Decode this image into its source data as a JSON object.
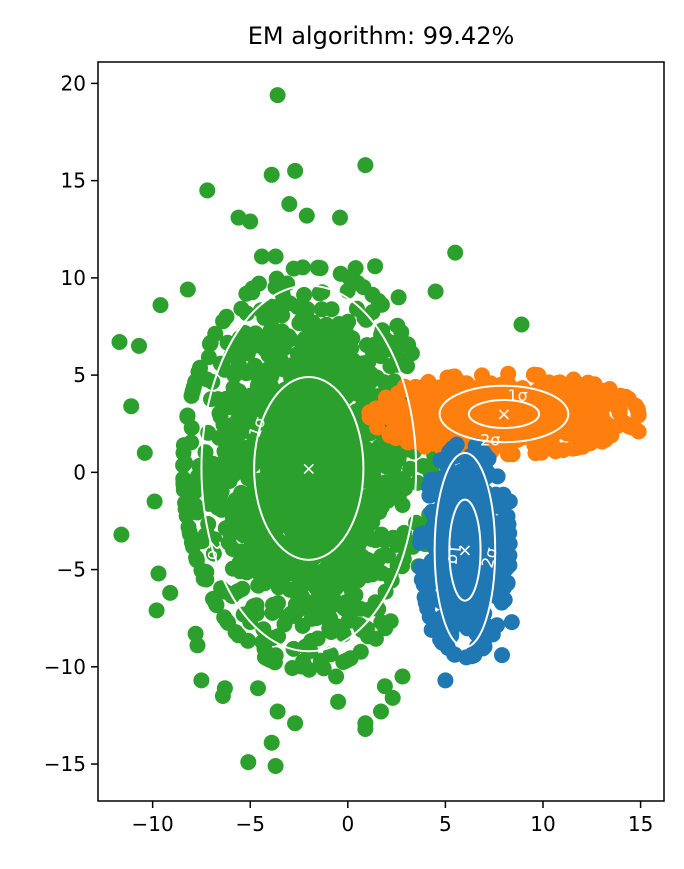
{
  "chart_data": {
    "type": "scatter",
    "title": "EM algorithm: 99.42%",
    "xlabel": "",
    "ylabel": "",
    "xlim": [
      -12.8,
      16.2
    ],
    "ylim": [
      -16.9,
      21.1
    ],
    "xticks": [
      -10,
      -5,
      0,
      5,
      10,
      15
    ],
    "yticks": [
      -15,
      -10,
      -5,
      0,
      5,
      10,
      15,
      20
    ],
    "xtick_labels": [
      "−10",
      "−5",
      "0",
      "5",
      "10",
      "15"
    ],
    "ytick_labels": [
      "−15",
      "−10",
      "−5",
      "0",
      "5",
      "10",
      "15",
      "20"
    ],
    "grid": false,
    "legend": "none",
    "colors": {
      "cluster_green": "#2ca02c",
      "cluster_orange": "#ff7f0e",
      "cluster_blue": "#1f77b4",
      "contour": "#ffffff"
    },
    "clusters": [
      {
        "color": "#2ca02c",
        "mean": [
          -2,
          0.2
        ],
        "std": [
          2.8,
          4.5
        ],
        "count": 1400,
        "sigma_ellipses": [
          {
            "level": 1,
            "label": "1σ",
            "rx": 2.8,
            "ry": 4.7,
            "label_at": [
              -4.6,
              2.3
            ],
            "label_rotation": -70
          },
          {
            "level": 2,
            "label": "2σ",
            "rx": 5.5,
            "ry": 9.4,
            "label_at": [
              -6.9,
              -4.0
            ],
            "label_rotation": 95
          }
        ],
        "outliers": [
          [
            -3.6,
            19.4
          ],
          [
            -2.7,
            15.5
          ],
          [
            -3.9,
            15.3
          ],
          [
            0.9,
            15.8
          ],
          [
            -7.2,
            14.5
          ],
          [
            -3.0,
            13.8
          ],
          [
            -5.6,
            13.1
          ],
          [
            -5.0,
            12.9
          ],
          [
            -2.1,
            13.2
          ],
          [
            -0.4,
            13.1
          ],
          [
            -4.4,
            11.1
          ],
          [
            -3.7,
            11.1
          ],
          [
            -9.6,
            8.6
          ],
          [
            -8.2,
            9.4
          ],
          [
            -11.7,
            6.7
          ],
          [
            -10.7,
            6.5
          ],
          [
            -11.1,
            3.4
          ],
          [
            -10.4,
            1.0
          ],
          [
            -11.6,
            -3.2
          ],
          [
            -9.9,
            -1.5
          ],
          [
            -9.7,
            -5.2
          ],
          [
            -9.8,
            -7.1
          ],
          [
            -9.1,
            -6.2
          ],
          [
            -7.8,
            -8.3
          ],
          [
            -7.7,
            -8.9
          ],
          [
            -7.5,
            -10.7
          ],
          [
            -6.4,
            -11.5
          ],
          [
            -6.3,
            -11.1
          ],
          [
            -4.6,
            -11.1
          ],
          [
            -5.1,
            -14.9
          ],
          [
            -3.7,
            -15.1
          ],
          [
            -3.9,
            -13.9
          ],
          [
            -3.6,
            -12.3
          ],
          [
            -2.7,
            -12.9
          ],
          [
            -0.5,
            -11.8
          ],
          [
            -0.6,
            -10.5
          ],
          [
            0.9,
            -12.9
          ],
          [
            0.9,
            -13.2
          ],
          [
            1.7,
            -12.3
          ],
          [
            1.9,
            -11.0
          ],
          [
            2.3,
            -11.6
          ],
          [
            2.8,
            -10.5
          ],
          [
            5.5,
            11.3
          ],
          [
            4.5,
            9.3
          ],
          [
            2.6,
            9.0
          ],
          [
            8.9,
            7.6
          ],
          [
            1.4,
            10.6
          ],
          [
            0.4,
            10.5
          ]
        ]
      },
      {
        "color": "#ff7f0e",
        "mean": [
          8,
          3
        ],
        "std": [
          3.0,
          0.9
        ],
        "count": 700,
        "sigma_ellipses": [
          {
            "level": 1,
            "label": "1σ",
            "rx": 1.8,
            "ry": 0.72,
            "label_at": [
              8.7,
              3.9
            ],
            "label_rotation": 0
          },
          {
            "level": 2,
            "label": "2σ",
            "rx": 3.3,
            "ry": 1.45,
            "label_at": [
              7.3,
              1.6
            ],
            "label_rotation": 0
          }
        ],
        "outliers": [
          [
            14.9,
            2.1
          ],
          [
            13.5,
            4.0
          ],
          [
            13.7,
            3.5
          ],
          [
            4.1,
            3.3
          ],
          [
            3.3,
            1.6
          ]
        ]
      },
      {
        "color": "#1f77b4",
        "mean": [
          6,
          -4
        ],
        "std": [
          1.0,
          2.4
        ],
        "count": 500,
        "sigma_ellipses": [
          {
            "level": 1,
            "label": "1σ",
            "rx": 0.8,
            "ry": 2.6,
            "label_at": [
              5.4,
              -4.2
            ],
            "label_rotation": 95
          },
          {
            "level": 2,
            "label": "2σ",
            "rx": 1.55,
            "ry": 5.0,
            "label_at": [
              7.3,
              -4.4
            ],
            "label_rotation": -75
          }
        ],
        "outliers": [
          [
            5.0,
            -10.7
          ],
          [
            8.4,
            -7.7
          ],
          [
            8.3,
            -1.5
          ],
          [
            4.3,
            -8.1
          ],
          [
            7.9,
            -9.4
          ]
        ]
      }
    ],
    "order": [
      0,
      1,
      2
    ]
  }
}
